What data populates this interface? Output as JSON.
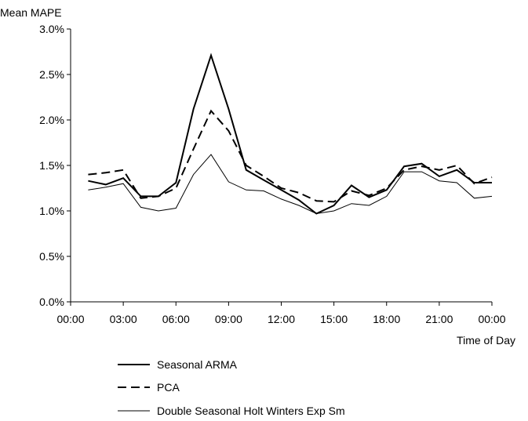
{
  "chart_data": {
    "type": "line",
    "title": "",
    "ylabel": "Mean MAPE",
    "xlabel": "Time of Day",
    "ylim": [
      0,
      3.0
    ],
    "y_ticks": [
      "0.0%",
      "0.5%",
      "1.0%",
      "1.5%",
      "2.0%",
      "2.5%",
      "3.0%"
    ],
    "x_ticks": [
      "00:00",
      "03:00",
      "06:00",
      "09:00",
      "12:00",
      "15:00",
      "18:00",
      "21:00",
      "00:00"
    ],
    "x": [
      1,
      2,
      3,
      4,
      5,
      6,
      7,
      8,
      9,
      10,
      11,
      12,
      13,
      14,
      15,
      16,
      17,
      18,
      19,
      20,
      21,
      22,
      23,
      24
    ],
    "x_unit": "hour of day",
    "grid": false,
    "legend_position": "bottom",
    "series": [
      {
        "name": "Seasonal ARMA",
        "style": "solid-thick",
        "values": [
          1.33,
          1.29,
          1.36,
          1.16,
          1.16,
          1.31,
          2.12,
          2.71,
          2.12,
          1.45,
          1.34,
          1.23,
          1.12,
          0.97,
          1.06,
          1.28,
          1.15,
          1.23,
          1.49,
          1.52,
          1.38,
          1.45,
          1.31,
          1.31
        ]
      },
      {
        "name": "PCA",
        "style": "dashed",
        "values": [
          1.4,
          1.42,
          1.45,
          1.14,
          1.16,
          1.25,
          1.68,
          2.1,
          1.88,
          1.5,
          1.38,
          1.25,
          1.2,
          1.11,
          1.1,
          1.22,
          1.17,
          1.25,
          1.45,
          1.49,
          1.45,
          1.5,
          1.3,
          1.37
        ]
      },
      {
        "name": "Double Seasonal Holt Winters Exp Sm",
        "style": "solid-thin",
        "values": [
          1.23,
          1.26,
          1.3,
          1.04,
          1.0,
          1.03,
          1.4,
          1.62,
          1.32,
          1.23,
          1.22,
          1.13,
          1.06,
          0.97,
          1.0,
          1.08,
          1.06,
          1.16,
          1.43,
          1.43,
          1.33,
          1.31,
          1.14,
          1.16
        ]
      }
    ]
  }
}
